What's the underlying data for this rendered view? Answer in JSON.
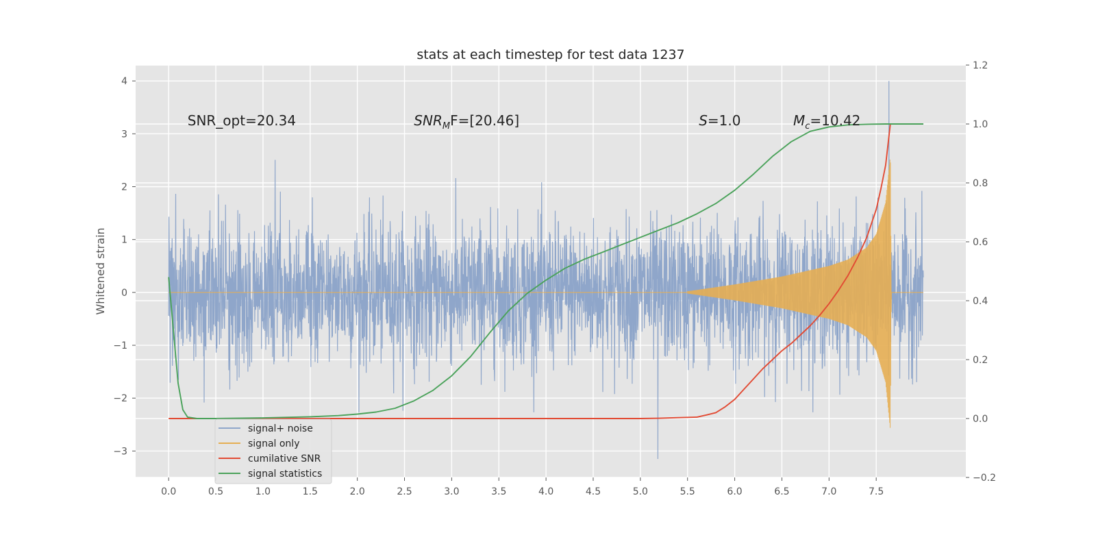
{
  "chart_data": {
    "type": "line",
    "title": "stats at each timestep for test data 1237",
    "ylabel": "Whitened strain",
    "xlim": [
      -0.35,
      8.45
    ],
    "ylim": [
      -3.5,
      4.3
    ],
    "y2lim": [
      -0.2,
      1.2
    ],
    "grid": true,
    "legend_position": "bottom-left",
    "x_ticks": [
      0.0,
      0.5,
      1.0,
      1.5,
      2.0,
      2.5,
      3.0,
      3.5,
      4.0,
      4.5,
      5.0,
      5.5,
      6.0,
      6.5,
      7.0,
      7.5
    ],
    "x_tick_labels": [
      "0.0",
      "0.5",
      "1.0",
      "1.5",
      "2.0",
      "2.5",
      "3.0",
      "3.5",
      "4.0",
      "4.5",
      "5.0",
      "5.5",
      "6.0",
      "6.5",
      "7.0",
      "7.5"
    ],
    "y_ticks": [
      -3,
      -2,
      -1,
      0,
      1,
      2,
      3,
      4
    ],
    "y_tick_labels": [
      "−3",
      "−2",
      "−1",
      "0",
      "1",
      "2",
      "3",
      "4"
    ],
    "y2_ticks": [
      -0.2,
      0.0,
      0.2,
      0.4,
      0.6,
      0.8,
      1.0,
      1.2
    ],
    "y2_tick_labels": [
      "−0.2",
      "0.0",
      "0.2",
      "0.4",
      "0.6",
      "0.8",
      "1.0",
      "1.2"
    ],
    "annotations": [
      {
        "text": "SNR_opt=20.34",
        "x": 0.2,
        "y": 3.25
      },
      {
        "text": "SNR",
        "sub": "M",
        "tail": "F=[20.46]",
        "italic": true,
        "x": 2.6,
        "y": 3.25
      },
      {
        "text": "S",
        "tail": "=1.0",
        "italic": true,
        "x": 5.62,
        "y": 3.25
      },
      {
        "text": "M",
        "sub": "c",
        "tail": "=10.42",
        "italic": true,
        "x": 6.62,
        "y": 3.25
      }
    ],
    "series": [
      {
        "name": "signal+ noise",
        "axis": "left",
        "color": "#8fa6ca",
        "kind": "noise",
        "x_range": [
          0.0,
          8.0
        ],
        "typical_amplitude": 1.2,
        "peak_max": 4.0,
        "peak_min": -3.15
      },
      {
        "name": "signal only",
        "axis": "left",
        "color": "#e5ae53",
        "kind": "chirp",
        "x_range": [
          0.0,
          8.0
        ],
        "envelope": {
          "x": [
            5.5,
            6.0,
            6.5,
            7.0,
            7.2,
            7.4,
            7.5,
            7.6,
            7.65,
            7.66
          ],
          "y": [
            0.02,
            0.15,
            0.3,
            0.5,
            0.62,
            0.85,
            1.1,
            1.7,
            2.6,
            0.0
          ]
        }
      },
      {
        "name": "cumilative SNR",
        "axis": "right",
        "color": "#e24a33",
        "x": [
          0.0,
          1.0,
          2.0,
          3.0,
          4.0,
          4.5,
          5.0,
          5.2,
          5.4,
          5.6,
          5.7,
          5.8,
          5.9,
          6.0,
          6.1,
          6.2,
          6.3,
          6.4,
          6.5,
          6.6,
          6.7,
          6.8,
          6.9,
          7.0,
          7.1,
          7.2,
          7.3,
          7.4,
          7.5,
          7.55,
          7.6,
          7.65,
          7.66,
          8.0
        ],
        "y": [
          0.0,
          0.0,
          0.0,
          0.0,
          0.0,
          0.0,
          0.0,
          0.001,
          0.003,
          0.005,
          0.012,
          0.02,
          0.04,
          0.065,
          0.1,
          0.135,
          0.17,
          0.2,
          0.23,
          0.255,
          0.285,
          0.315,
          0.35,
          0.39,
          0.435,
          0.485,
          0.545,
          0.615,
          0.71,
          0.78,
          0.86,
          1.0,
          1.0,
          1.0
        ]
      },
      {
        "name": "signal statistics",
        "axis": "right",
        "color": "#4aa25a",
        "x": [
          0.0,
          0.05,
          0.1,
          0.15,
          0.2,
          0.3,
          0.5,
          1.0,
          1.5,
          1.8,
          2.0,
          2.2,
          2.4,
          2.6,
          2.8,
          3.0,
          3.2,
          3.4,
          3.6,
          3.8,
          4.0,
          4.2,
          4.4,
          4.6,
          4.8,
          5.0,
          5.2,
          5.4,
          5.6,
          5.8,
          6.0,
          6.2,
          6.4,
          6.6,
          6.8,
          7.0,
          7.2,
          7.4,
          7.6,
          8.0
        ],
        "y": [
          0.48,
          0.3,
          0.12,
          0.03,
          0.005,
          0.0,
          0.0,
          0.002,
          0.006,
          0.01,
          0.015,
          0.022,
          0.035,
          0.06,
          0.095,
          0.145,
          0.21,
          0.29,
          0.365,
          0.425,
          0.47,
          0.51,
          0.54,
          0.565,
          0.59,
          0.615,
          0.64,
          0.665,
          0.695,
          0.73,
          0.775,
          0.83,
          0.89,
          0.94,
          0.975,
          0.99,
          0.997,
          0.999,
          1.0,
          1.0
        ]
      }
    ]
  }
}
